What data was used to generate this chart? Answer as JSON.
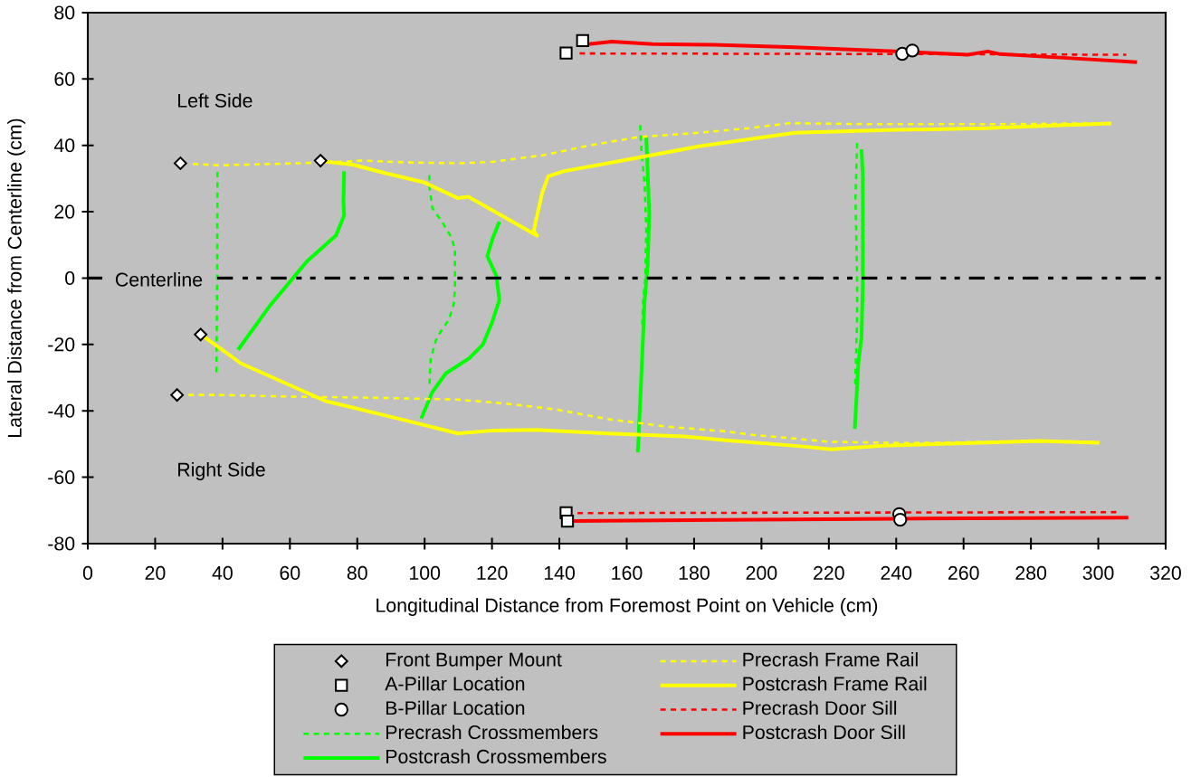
{
  "chart_data": {
    "type": "line",
    "xlabel": "Longitudinal Distance from Foremost Point on Vehicle (cm)",
    "ylabel": "Lateral Distance from Centerline (cm)",
    "xlim": [
      0,
      320
    ],
    "ylim": [
      -80,
      80
    ],
    "xticks": [
      0,
      20,
      40,
      60,
      80,
      100,
      120,
      140,
      160,
      180,
      200,
      220,
      240,
      260,
      280,
      300,
      320
    ],
    "yticks": [
      -80,
      -60,
      -40,
      -20,
      0,
      20,
      40,
      60,
      80
    ],
    "legend": "bottom",
    "annotations": [
      "Left Side",
      "Right Side"
    ],
    "ref_lines": [
      {
        "axis": "y",
        "value": 0,
        "label": "Centerline",
        "color": "#000000",
        "line_style": "dashdot"
      }
    ],
    "series": [
      {
        "name": "Front Bumper Mount",
        "type": "scatter",
        "marker": "diamond",
        "color": "#ffffff",
        "x": [
          27.5,
          69.1,
          33.5,
          26.5
        ],
        "values": [
          34.6,
          35.4,
          -17.0,
          -35.2
        ]
      },
      {
        "name": "A-Pillar Location",
        "type": "scatter",
        "marker": "square",
        "color": "#ffffff",
        "x": [
          142.0,
          146.9,
          142.0,
          142.4
        ],
        "values": [
          67.8,
          71.6,
          -70.7,
          -73.2
        ]
      },
      {
        "name": "B-Pillar Location",
        "type": "scatter",
        "marker": "circle",
        "color": "#ffffff",
        "x": [
          241.8,
          244.8,
          240.9,
          241.2
        ],
        "values": [
          67.6,
          68.6,
          -71.1,
          -72.8
        ]
      },
      {
        "name": "Precrash Crossmembers",
        "line_style": "dashed",
        "color": "#00ff00",
        "x": [
          38.5,
          38.4,
          38.2,
          null,
          101.4,
          101.4,
          102.3,
          105.4,
          108.1,
          109.0,
          109.0,
          108.6,
          107.2,
          103.6,
          101.8,
          101.4,
          null,
          164.0,
          164.4,
          165.3,
          165.8,
          165.5,
          164.9,
          164.6,
          null,
          228.4,
          227.9,
          228.4,
          228.4,
          227.9,
          227.8
        ],
        "values": [
          32.0,
          0.0,
          -29.8,
          null,
          31.1,
          27.5,
          21.1,
          16.6,
          12.0,
          8.4,
          -3.4,
          -8.0,
          -12.5,
          -17.9,
          -24.3,
          -32.5,
          null,
          46.1,
          37.5,
          28.4,
          14.8,
          -0.2,
          -6.1,
          -14.0,
          null,
          40.7,
          23.8,
          0.2,
          -12.5,
          -28.8,
          -33.3
        ]
      },
      {
        "name": "Postcrash Crossmembers",
        "line_style": "solid",
        "color": "#00ff00",
        "x": [
          76.1,
          75.9,
          76.1,
          73.7,
          65.2,
          54.0,
          44.6,
          null,
          122.2,
          120.2,
          118.6,
          121.3,
          122.2,
          120.0,
          117.3,
          113.3,
          106.3,
          102.3,
          99.0,
          null,
          165.8,
          166.7,
          166.2,
          165.3,
          164.3,
          163.3,
          null,
          229.7,
          230.1,
          230.1,
          229.7,
          228.8,
          227.7
        ],
        "values": [
          32.2,
          22.9,
          18.9,
          12.9,
          5.2,
          -8.4,
          -21.6,
          null,
          17.0,
          12.0,
          6.6,
          0.7,
          -6.6,
          -13.4,
          -20.0,
          -24.1,
          -28.7,
          -34.3,
          -42.3,
          null,
          42.5,
          19.3,
          3.9,
          -7.0,
          -30.7,
          -52.5,
          null,
          38.8,
          30.7,
          -1.6,
          -17.9,
          -25.2,
          -45.4
        ]
      },
      {
        "name": "Precrash Frame Rail",
        "line_style": "dashed",
        "color": "#ffff00",
        "x": [
          31.2,
          39.2,
          69.7,
          81.3,
          94.2,
          109.9,
          120.6,
          134.9,
          150.1,
          163.5,
          181.4,
          196.6,
          208.2,
          233.3,
          269.0,
          303.9,
          null,
          29.9,
          39.2,
          60.7,
          87.5,
          109.9,
          123.3,
          138.5,
          154.6,
          172.5,
          188.6,
          197.5,
          219.9,
          242.2,
          269.0,
          300.3
        ],
        "values": [
          34.4,
          34.0,
          34.8,
          35.4,
          34.9,
          34.6,
          35.1,
          37.0,
          40.2,
          42.5,
          43.8,
          45.2,
          46.7,
          46.4,
          46.4,
          46.7,
          null,
          -35.2,
          -35.2,
          -35.7,
          -36.1,
          -36.6,
          -37.7,
          -39.5,
          -42.5,
          -44.8,
          -46.1,
          -47.2,
          -49.3,
          -49.7,
          -49.3,
          -49.3
        ]
      },
      {
        "name": "Postcrash Frame Rail",
        "line_style": "solid",
        "color": "#ffff00",
        "x": [
          69.1,
          71.4,
          78.6,
          88.4,
          100.0,
          109.9,
          113.0,
          133.4,
          132.4,
          134.9,
          136.7,
          141.2,
          159.1,
          181.4,
          210.0,
          237.7,
          266.4,
          286.9,
          303.9,
          null,
          33.5,
          34.8,
          45.5,
          70.5,
          92.0,
          109.9,
          120.6,
          133.1,
          154.6,
          176.9,
          188.6,
          210.9,
          220.8,
          236.0,
          282.5,
          300.3
        ],
        "values": [
          35.4,
          35.0,
          34.2,
          31.6,
          28.8,
          24.1,
          24.5,
          12.8,
          14.3,
          25.7,
          30.7,
          32.2,
          35.5,
          39.7,
          43.8,
          44.6,
          45.2,
          46.0,
          46.6,
          null,
          -17.0,
          -17.9,
          -25.7,
          -37.0,
          -42.3,
          -46.8,
          -45.9,
          -45.7,
          -46.8,
          -47.7,
          -48.8,
          -50.6,
          -51.6,
          -50.5,
          -49.1,
          -49.6
        ]
      },
      {
        "name": "Precrash Door Sill",
        "line_style": "dashed",
        "color": "#ff0000",
        "x": [
          146.0,
          250.0,
          308.3,
          null,
          145.4,
          306.5
        ],
        "values": [
          67.7,
          67.5,
          67.3,
          null,
          -70.8,
          -70.5
        ]
      },
      {
        "name": "Postcrash Door Sill",
        "line_style": "solid",
        "color": "#ff0000",
        "x": [
          146.9,
          155.6,
          167.7,
          185.8,
          209.9,
          241.3,
          261.2,
          267.2,
          270.9,
          289.6,
          311.5,
          null,
          144.2,
          240.1,
          308.9
        ],
        "values": [
          70.3,
          71.3,
          70.5,
          70.3,
          69.6,
          68.3,
          67.3,
          68.3,
          67.5,
          66.4,
          65.1,
          null,
          -73.2,
          -72.5,
          -72.2
        ]
      }
    ]
  }
}
